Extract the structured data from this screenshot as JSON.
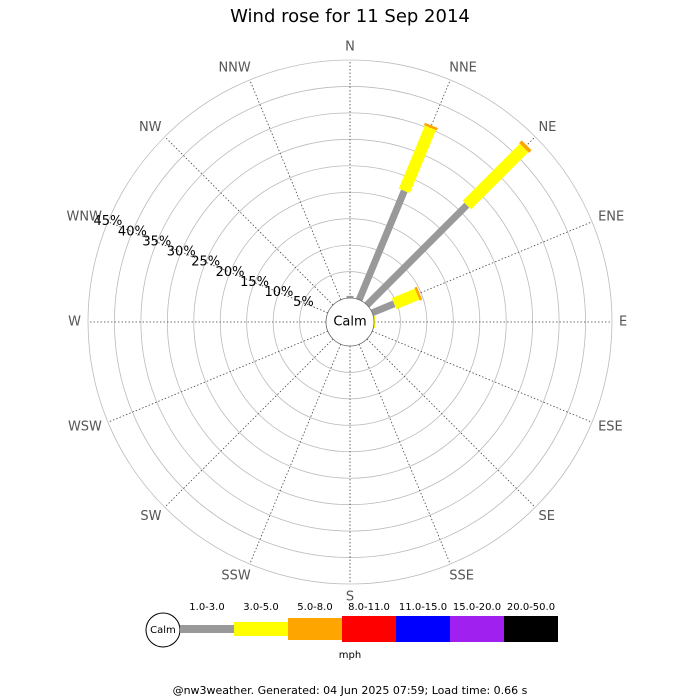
{
  "chart_data": {
    "type": "windrose",
    "title": "Wind rose for 11 Sep 2014",
    "categories": [
      "N",
      "NNE",
      "NE",
      "ENE",
      "E",
      "ESE",
      "SE",
      "SSE",
      "S",
      "SSW",
      "SW",
      "WSW",
      "W",
      "WNW",
      "NW",
      "NNW"
    ],
    "series": [
      {
        "name": "1.0-3.0",
        "color": "#999999",
        "values": [
          0.4,
          22.3,
          26.7,
          4.5,
          0,
          0,
          0,
          0,
          0,
          0,
          0,
          0,
          0,
          0,
          0,
          0
        ]
      },
      {
        "name": "3.0-5.0",
        "color": "#ffff00",
        "values": [
          0,
          12.9,
          15.3,
          4.7,
          0.2,
          0,
          0,
          0,
          0,
          0,
          0,
          0,
          0,
          0,
          0,
          0
        ]
      },
      {
        "name": "5.0-8.0",
        "color": "#ffa500",
        "values": [
          0,
          0.5,
          0.7,
          0.5,
          0,
          0,
          0,
          0,
          0,
          0,
          0,
          0,
          0,
          0,
          0,
          0
        ]
      },
      {
        "name": "8.0-11.0",
        "color": "#ff0000",
        "values": [
          0,
          0,
          0,
          0,
          0,
          0,
          0,
          0,
          0,
          0,
          0,
          0,
          0,
          0,
          0,
          0
        ]
      },
      {
        "name": "11.0-15.0",
        "color": "#0000ff",
        "values": [
          0,
          0,
          0,
          0,
          0,
          0,
          0,
          0,
          0,
          0,
          0,
          0,
          0,
          0,
          0,
          0
        ]
      },
      {
        "name": "15.0-20.0",
        "color": "#a020f0",
        "values": [
          0,
          0,
          0,
          0,
          0,
          0,
          0,
          0,
          0,
          0,
          0,
          0,
          0,
          0,
          0,
          0
        ]
      },
      {
        "name": "20.0-50.0",
        "color": "#000000",
        "values": [
          0,
          0,
          0,
          0,
          0,
          0,
          0,
          0,
          0,
          0,
          0,
          0,
          0,
          0,
          0,
          0
        ]
      }
    ],
    "rlim": [
      0,
      45
    ],
    "rticks": [
      {
        "value": 5,
        "label": "5%"
      },
      {
        "value": 10,
        "label": "10%"
      },
      {
        "value": 15,
        "label": "15%"
      },
      {
        "value": 20,
        "label": "20%"
      },
      {
        "value": 25,
        "label": "25%"
      },
      {
        "value": 30,
        "label": "30%"
      },
      {
        "value": 35,
        "label": "35%"
      },
      {
        "value": 40,
        "label": "40%"
      },
      {
        "value": 45,
        "label": "45%"
      }
    ],
    "calm_label": "Calm",
    "unit": "mph"
  },
  "footer": "@nw3weather. Generated: 04 Jun 2025 07:59; Load time: 0.66 s"
}
